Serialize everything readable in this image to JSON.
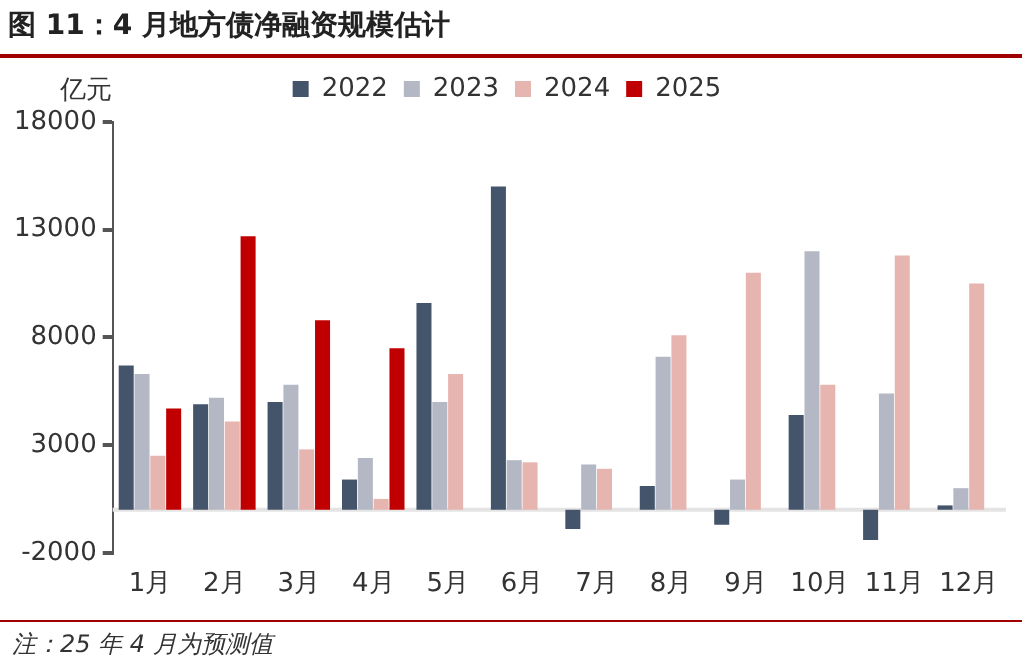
{
  "chart_data": {
    "type": "bar",
    "title": "图 11：4 月地方债净融资规模估计",
    "ylabel": "亿元",
    "categories": [
      "1月",
      "2月",
      "3月",
      "4月",
      "5月",
      "6月",
      "7月",
      "8月",
      "9月",
      "10月",
      "11月",
      "12月"
    ],
    "series": [
      {
        "name": "2022",
        "color": "#44546a",
        "values": [
          6700,
          4900,
          5000,
          1400,
          9600,
          15000,
          -900,
          1100,
          -700,
          4400,
          -1400,
          200
        ]
      },
      {
        "name": "2023",
        "color": "#b4b7c4",
        "values": [
          6300,
          5200,
          5800,
          2400,
          5000,
          2300,
          2100,
          7100,
          1400,
          12000,
          5400,
          1000
        ]
      },
      {
        "name": "2024",
        "color": "#e6b5b0",
        "values": [
          2500,
          4100,
          2800,
          500,
          6300,
          2200,
          1900,
          8100,
          11000,
          5800,
          11800,
          10500
        ]
      },
      {
        "name": "2025",
        "color": "#c00000",
        "values": [
          4700,
          12700,
          8800,
          7500,
          null,
          null,
          null,
          null,
          null,
          null,
          null,
          null
        ]
      }
    ],
    "ylim": [
      -2000,
      18000
    ],
    "yticks": [
      -2000,
      3000,
      8000,
      13000,
      18000
    ],
    "grid": false,
    "legend": "top",
    "annotations": [
      "注：25 年 4 月为预测值"
    ]
  }
}
